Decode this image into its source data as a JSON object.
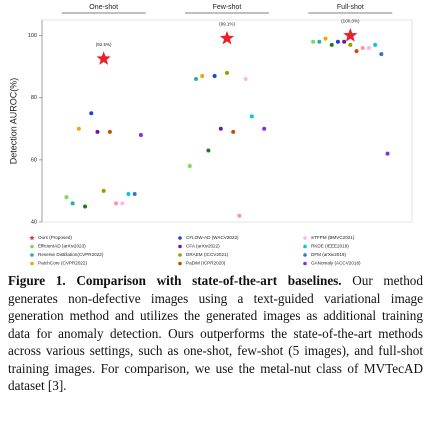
{
  "chart_data": {
    "type": "scatter",
    "categories": [
      "One-shot",
      "Few-shot",
      "Full-shot"
    ],
    "ylabel": "Detection AUROC(%)",
    "ylim": [
      40,
      105
    ],
    "yticks": [
      40,
      60,
      80,
      100
    ],
    "series": [
      {
        "name": "Ours (Proposed)",
        "color": "#e8222a",
        "marker": "star",
        "values": [
          92.5,
          99.1,
          100.0
        ],
        "value_labels": [
          "(92.5%)",
          "(99.1%)",
          "(100.0%)"
        ]
      },
      {
        "name": "EfficientAD (arXiv2023)",
        "color": "#7ed957",
        "values": [
          48,
          58,
          98
        ]
      },
      {
        "name": "Reverse Distillation(CVPR2022)",
        "color": "#20b2aa",
        "values": [
          46,
          86,
          98
        ]
      },
      {
        "name": "PatchCore (CVPR2022)",
        "color": "#f4a300",
        "values": [
          70,
          87,
          99
        ]
      },
      {
        "name": "CSFlow (WACV2022)",
        "color": "#1a7a1a",
        "values": [
          45,
          63,
          97
        ]
      },
      {
        "name": "CFLOW-AD (WACV2022)",
        "color": "#1f3fd8",
        "values": [
          75,
          87,
          98
        ]
      },
      {
        "name": "CFA (arXiv2022)",
        "color": "#6a1b9a",
        "values": [
          69,
          70,
          98
        ]
      },
      {
        "name": "DRAEM (ICCV2021)",
        "color": "#9a9a00",
        "values": [
          50,
          88,
          97
        ]
      },
      {
        "name": "PaDiM (ICPR2020)",
        "color": "#c05000",
        "values": [
          69,
          69,
          95
        ]
      },
      {
        "name": "FastFlow (arXiv2021)",
        "color": "#ff8fb0",
        "values": [
          46,
          42,
          96
        ]
      },
      {
        "name": "STFPM (BMVC2021)",
        "color": "#ffb6e6",
        "values": [
          46,
          86,
          96
        ]
      },
      {
        "name": "RKDE (IEEE2019)",
        "color": "#00c8e8",
        "values": [
          49,
          74,
          97
        ]
      },
      {
        "name": "DFM (arXiv2019)",
        "color": "#3a6fd8",
        "values": [
          49,
          null,
          94
        ]
      },
      {
        "name": "GANomaly (ACCV2018)",
        "color": "#8a2be2",
        "values": [
          68,
          70,
          62
        ]
      }
    ]
  },
  "caption": {
    "label": "Figure 1.",
    "title": "Comparison with state-of-the-art baselines.",
    "text": "Our method generates non-defective images using a text-guided variational image generation method and utilizes the generated images as additional training data for anomaly detection. Ours outperforms the state-of-the-art methods across various settings, such as one-shot, few-shot (5 images), and full-shot training images. For comparison, we use the metal-nut class of MVTecAD dataset [3]."
  }
}
